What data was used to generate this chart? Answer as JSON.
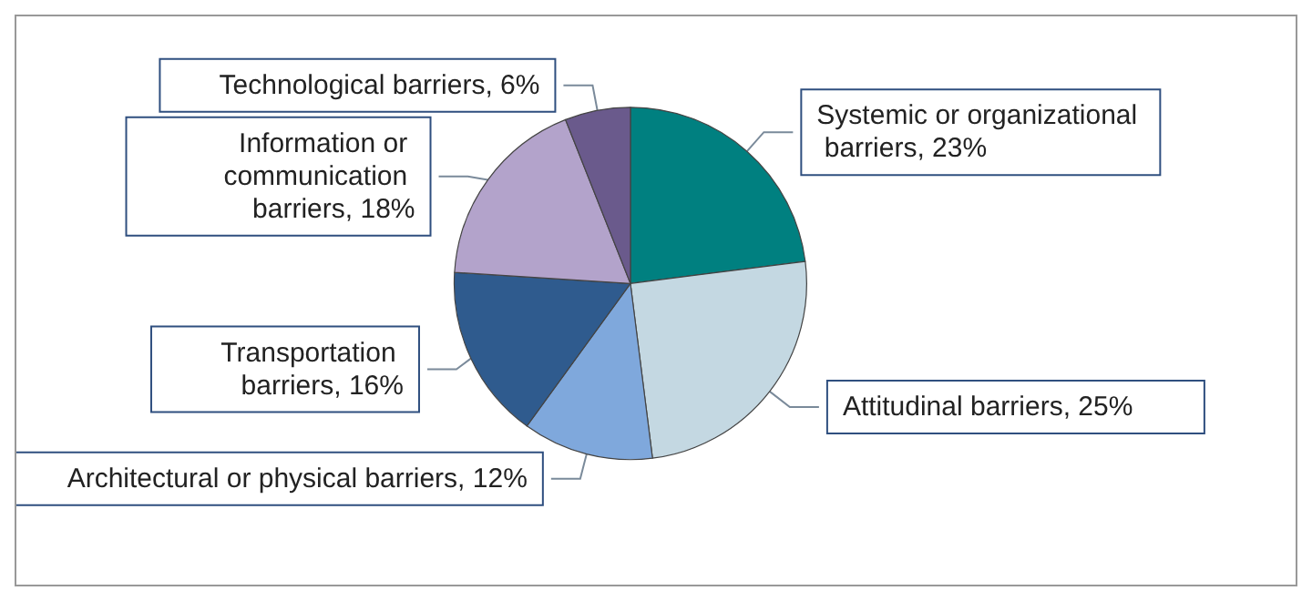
{
  "chart_data": {
    "type": "pie",
    "categories": [
      "Systemic or organizational barriers",
      "Attitudinal barriers",
      "Architectural or physical barriers",
      "Transportation barriers",
      "Information or communication barriers",
      "Technological barriers"
    ],
    "values": [
      23,
      25,
      12,
      16,
      18,
      6
    ],
    "value_labels": [
      "23%",
      "25%",
      "12%",
      "16%",
      "18%",
      "6%"
    ],
    "colors": [
      "#008080",
      "#c4d8e2",
      "#7fa8dc",
      "#2f5b8e",
      "#b3a3cb",
      "#6a5a8c"
    ],
    "legend": false
  }
}
